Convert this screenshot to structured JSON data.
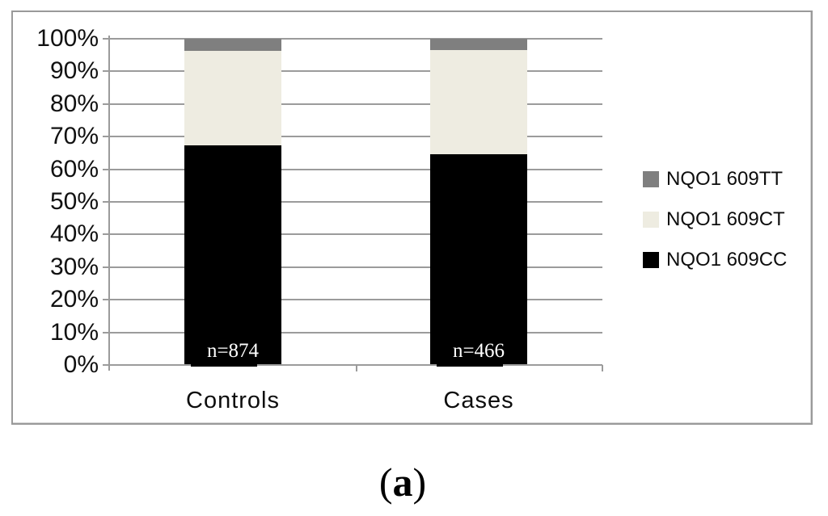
{
  "caption": {
    "open": "(",
    "letter": "a",
    "close": ")"
  },
  "chart_data": {
    "type": "bar",
    "stacked": true,
    "title": "",
    "xlabel": "",
    "ylabel": "",
    "categories": [
      "Controls",
      "Cases"
    ],
    "bar_annotations": [
      "n=874",
      "n=466"
    ],
    "series": [
      {
        "name": "NQO1 609CC",
        "color": "#000000",
        "values": [
          67.3,
          64.6
        ]
      },
      {
        "name": "NQO1 609CT",
        "color": "#EEECE1",
        "values": [
          28.9,
          31.9
        ]
      },
      {
        "name": "NQO1 609TT",
        "color": "#7F7F7F",
        "values": [
          3.8,
          3.5
        ]
      }
    ],
    "legend": [
      {
        "label": "NQO1 609TT",
        "color": "#7F7F7F"
      },
      {
        "label": "NQO1 609CT",
        "color": "#EEECE1"
      },
      {
        "label": "NQO1 609CC",
        "color": "#000000"
      }
    ],
    "legend_position": "right",
    "grid": true,
    "ylim": [
      0,
      100
    ],
    "y_axis": {
      "min": 0,
      "max": 100,
      "step": 10,
      "unit": "%",
      "ticks": [
        "100%",
        "90%",
        "80%",
        "70%",
        "60%",
        "50%",
        "40%",
        "30%",
        "20%",
        "10%",
        "0%"
      ]
    },
    "colors": {
      "gridline": "#9B9B9B",
      "axis": "#9B9B9B",
      "frame_border": "#9A9A9A",
      "annotation_text": "#FFFFFF",
      "label_text": "#0D0D0D"
    }
  }
}
